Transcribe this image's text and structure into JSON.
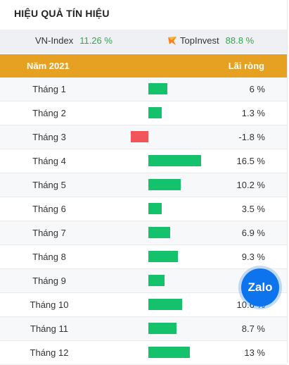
{
  "title": "HIỆU QUẢ TÍN HIỆU",
  "indices": {
    "vnindex": {
      "name": "VN-Index",
      "value": "11.26 %"
    },
    "topinvest": {
      "name": "TopInvest",
      "value": "88.8 %",
      "icon": "topinvest-logo-icon"
    }
  },
  "table": {
    "headers": {
      "year": "Năm 2021",
      "profit": "Lãi ròng"
    },
    "rows": [
      {
        "month": "Tháng 1",
        "pct": "6 %",
        "value": 6
      },
      {
        "month": "Tháng 2",
        "pct": "1.3 %",
        "value": 1.3
      },
      {
        "month": "Tháng 3",
        "pct": "-1.8 %",
        "value": -1.8
      },
      {
        "month": "Tháng 4",
        "pct": "16.5 %",
        "value": 16.5
      },
      {
        "month": "Tháng 5",
        "pct": "10.2 %",
        "value": 10.2
      },
      {
        "month": "Tháng 6",
        "pct": "3.5 %",
        "value": 3.5
      },
      {
        "month": "Tháng 7",
        "pct": "6.9 %",
        "value": 6.9
      },
      {
        "month": "Tháng 8",
        "pct": "9.3 %",
        "value": 9.3
      },
      {
        "month": "Tháng 9",
        "pct": "",
        "value": 5
      },
      {
        "month": "Tháng 10",
        "pct": "10.6 %",
        "value": 10.6
      },
      {
        "month": "Tháng 11",
        "pct": "8.7 %",
        "value": 8.7
      },
      {
        "month": "Tháng 12",
        "pct": "13 %",
        "value": 13
      }
    ]
  },
  "zalo": {
    "label": "Zalo",
    "icon": "zalo-chat-icon"
  },
  "colors": {
    "header": "#e6a123",
    "positive": "#13c26b",
    "negative": "#f2545b",
    "index_value": "#2fa94f"
  }
}
